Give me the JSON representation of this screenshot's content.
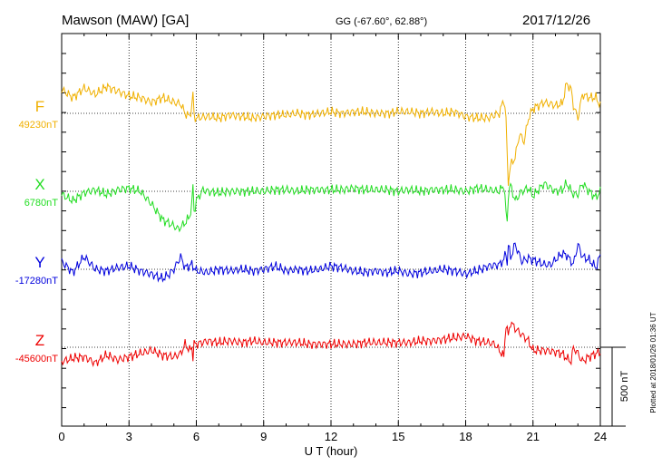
{
  "header": {
    "station": "Mawson (MAW)  [GA]",
    "coords": "GG (-67.60°,  62.88°)",
    "date": "2017/12/26"
  },
  "side_note": "Plotted at 2018/01/26 01:36 UT",
  "scale_label": "500 nT",
  "colors": {
    "F": "#f0b000",
    "X": "#22dd22",
    "Y": "#0000dd",
    "Z": "#ee0000",
    "axis": "#000000",
    "grid": "#000000"
  },
  "chart_data": {
    "type": "line",
    "xlabel": "U T (hour)",
    "xlim": [
      0,
      24
    ],
    "xticks": [
      "0",
      "3",
      "6",
      "9",
      "12",
      "15",
      "18",
      "21",
      "24"
    ],
    "grid": true,
    "series": [
      {
        "name": "F",
        "baseline_label": "49230nT",
        "baseline": 49230,
        "x": [
          0,
          0.5,
          1,
          1.5,
          2,
          2.5,
          3,
          3.5,
          4,
          4.5,
          5,
          5.3,
          5.5,
          5.7,
          5.8,
          5.85,
          5.9,
          6,
          6.5,
          7,
          7.5,
          8,
          8.5,
          9,
          9.5,
          10,
          10.5,
          11,
          11.5,
          12,
          12.5,
          13,
          13.5,
          14,
          14.5,
          15,
          15.5,
          16,
          16.5,
          17,
          17.5,
          18,
          18.5,
          19,
          19.3,
          19.5,
          19.7,
          19.8,
          19.85,
          19.9,
          20,
          20.2,
          20.4,
          20.6,
          20.8,
          21,
          21.5,
          22,
          22.3,
          22.5,
          22.7,
          22.8,
          23,
          23.2,
          23.5,
          23.8,
          24
        ],
        "values": [
          49380,
          49330,
          49390,
          49350,
          49400,
          49370,
          49340,
          49330,
          49300,
          49330,
          49300,
          49290,
          49230,
          49210,
          49280,
          49360,
          49210,
          49200,
          49210,
          49200,
          49220,
          49210,
          49200,
          49210,
          49220,
          49220,
          49230,
          49220,
          49230,
          49240,
          49230,
          49240,
          49240,
          49230,
          49230,
          49240,
          49240,
          49230,
          49240,
          49230,
          49240,
          49210,
          49200,
          49200,
          49220,
          49230,
          49320,
          49200,
          48950,
          48800,
          48900,
          48950,
          49100,
          49050,
          49200,
          49260,
          49300,
          49280,
          49290,
          49420,
          49380,
          49280,
          49200,
          49350,
          49330,
          49330,
          49280
        ]
      },
      {
        "name": "X",
        "baseline_label": "6780nT",
        "baseline": 6780,
        "x": [
          0,
          0.5,
          1,
          1.5,
          2,
          2.5,
          3,
          3.5,
          4,
          4.5,
          5,
          5.2,
          5.5,
          5.7,
          5.8,
          5.85,
          5.9,
          6,
          6.3,
          6.5,
          7,
          7.5,
          8,
          8.5,
          9,
          9.5,
          10,
          10.5,
          11,
          11.5,
          12,
          12.5,
          13,
          13.5,
          14,
          14.5,
          15,
          15.5,
          16,
          16.5,
          17,
          17.5,
          18,
          18.5,
          19,
          19.5,
          19.7,
          19.8,
          19.85,
          19.9,
          20,
          20.2,
          20.5,
          20.8,
          21,
          21.5,
          22,
          22.3,
          22.5,
          22.8,
          23,
          23.2,
          23.5,
          23.8,
          24
        ],
        "values": [
          6760,
          6720,
          6770,
          6790,
          6760,
          6790,
          6800,
          6780,
          6700,
          6600,
          6560,
          6540,
          6580,
          6620,
          6700,
          6820,
          6650,
          6720,
          6790,
          6780,
          6770,
          6780,
          6780,
          6780,
          6780,
          6790,
          6790,
          6780,
          6790,
          6790,
          6790,
          6790,
          6800,
          6790,
          6790,
          6790,
          6780,
          6790,
          6780,
          6790,
          6790,
          6790,
          6780,
          6800,
          6790,
          6780,
          6820,
          6650,
          6580,
          6760,
          6820,
          6720,
          6780,
          6800,
          6750,
          6830,
          6780,
          6790,
          6830,
          6760,
          6760,
          6830,
          6780,
          6740,
          6780
        ]
      },
      {
        "name": "Y",
        "baseline_label": "-17280nT",
        "baseline": -17280,
        "x": [
          0,
          0.5,
          1,
          1.5,
          2,
          2.5,
          3,
          3.5,
          4,
          4.5,
          4.8,
          5,
          5.3,
          5.5,
          5.8,
          6,
          6.5,
          7,
          7.5,
          8,
          8.5,
          9,
          9.5,
          10,
          10.5,
          11,
          11.5,
          12,
          12.5,
          13,
          13.5,
          14,
          14.5,
          15,
          15.5,
          16,
          16.5,
          17,
          17.5,
          18,
          18.5,
          19,
          19.5,
          19.7,
          19.8,
          19.85,
          19.9,
          20,
          20.2,
          20.5,
          20.8,
          21,
          21.5,
          21.8,
          22,
          22.3,
          22.5,
          22.8,
          23,
          23.2,
          23.5,
          23.8,
          24
        ],
        "values": [
          -17230,
          -17300,
          -17200,
          -17280,
          -17290,
          -17270,
          -17260,
          -17290,
          -17310,
          -17340,
          -17310,
          -17280,
          -17200,
          -17270,
          -17250,
          -17290,
          -17300,
          -17280,
          -17290,
          -17280,
          -17290,
          -17280,
          -17260,
          -17290,
          -17280,
          -17290,
          -17280,
          -17260,
          -17270,
          -17290,
          -17300,
          -17290,
          -17300,
          -17290,
          -17310,
          -17300,
          -17290,
          -17280,
          -17290,
          -17310,
          -17290,
          -17260,
          -17250,
          -17220,
          -17170,
          -17250,
          -17120,
          -17210,
          -17120,
          -17230,
          -17210,
          -17220,
          -17250,
          -17250,
          -17220,
          -17180,
          -17190,
          -17250,
          -17120,
          -17200,
          -17220,
          -17270,
          -17190
        ]
      },
      {
        "name": "Z",
        "baseline_label": "-45600nT",
        "baseline": -45600,
        "x": [
          0,
          0.5,
          1,
          1.5,
          2,
          2.5,
          3,
          3.5,
          4,
          4.5,
          5,
          5.3,
          5.5,
          5.7,
          5.8,
          5.85,
          5.9,
          6,
          6.5,
          7,
          7.5,
          8,
          8.5,
          9,
          9.5,
          10,
          10.5,
          11,
          11.5,
          12,
          12.5,
          13,
          13.5,
          14,
          14.5,
          15,
          15.5,
          16,
          16.5,
          17,
          17.5,
          18,
          18.5,
          19,
          19.3,
          19.5,
          19.7,
          19.8,
          19.9,
          20,
          20.2,
          20.5,
          20.8,
          21,
          21.5,
          22,
          22.3,
          22.5,
          22.7,
          22.8,
          23,
          23.2,
          23.5,
          23.8,
          24
        ],
        "values": [
          -45690,
          -45670,
          -45660,
          -45700,
          -45650,
          -45680,
          -45660,
          -45640,
          -45620,
          -45650,
          -45660,
          -45640,
          -45580,
          -45620,
          -45600,
          -45660,
          -45580,
          -45580,
          -45560,
          -45570,
          -45560,
          -45570,
          -45560,
          -45570,
          -45570,
          -45570,
          -45570,
          -45580,
          -45580,
          -45580,
          -45580,
          -45580,
          -45570,
          -45570,
          -45570,
          -45570,
          -45570,
          -45560,
          -45560,
          -45550,
          -45540,
          -45530,
          -45560,
          -45570,
          -45580,
          -45620,
          -45660,
          -45450,
          -45530,
          -45440,
          -45480,
          -45520,
          -45560,
          -45620,
          -45620,
          -45630,
          -45640,
          -45670,
          -45690,
          -45600,
          -45640,
          -45690,
          -45660,
          -45640,
          -45630
        ]
      }
    ]
  }
}
